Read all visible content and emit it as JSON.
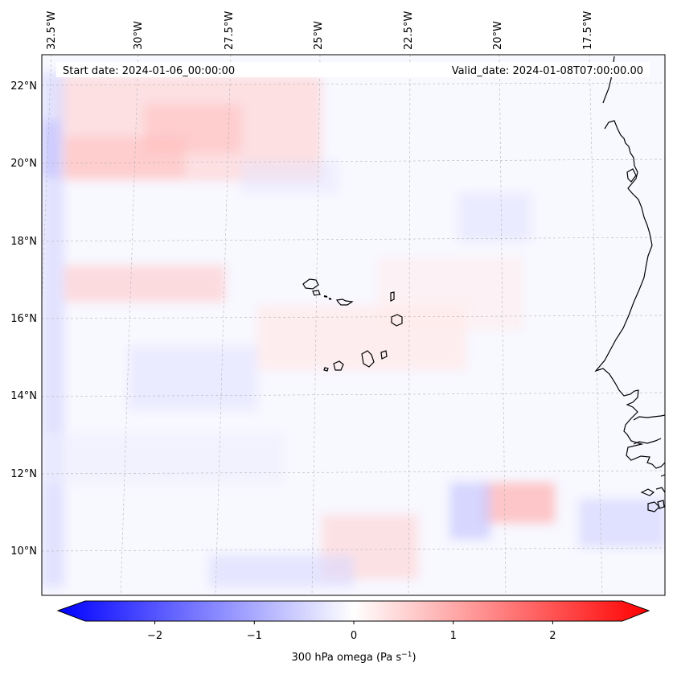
{
  "map": {
    "start_date_label": "Start date: 2024-01-06_00:00:00",
    "valid_date_label": "Valid_date: 2024-01-08T07:00:00.00",
    "lon_labels": [
      "32.5°W",
      "30°W",
      "27.5°W",
      "25°W",
      "22.5°W",
      "20°W",
      "17.5°W"
    ],
    "lat_labels": [
      "22°N",
      "20°N",
      "18°N",
      "16°N",
      "14°N",
      "12°N",
      "10°N"
    ],
    "field": "300 hPa omega",
    "islands": [
      "Santo Antão",
      "São Vicente",
      "Santa Luzia",
      "São Nicolau",
      "Sal",
      "Boa Vista",
      "Maio",
      "Santiago",
      "Fogo",
      "Brava"
    ],
    "coastline": "West Africa (Mauritania, Senegal, Gambia, Guinea-Bissau)"
  },
  "colorbar": {
    "label_prefix": "300 hPa omega (Pa s",
    "label_sup": "−1",
    "label_suffix": ")",
    "ticks": [
      "−2",
      "−1",
      "0",
      "1",
      "2"
    ],
    "range": [
      -2.7,
      2.7
    ],
    "colors": {
      "negative": "#0000ff",
      "zero": "#ffffff",
      "positive": "#ff0000"
    }
  }
}
